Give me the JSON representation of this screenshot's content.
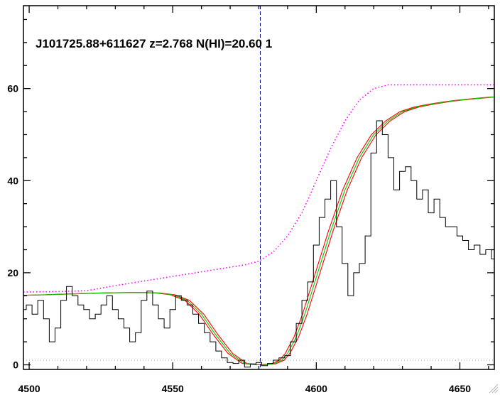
{
  "chart_data": {
    "type": "line",
    "title": "J101725.88+611627 z=2.768 N(HI)=20.60 1",
    "xlabel": "",
    "ylabel": "",
    "xlim": [
      4498,
      4662
    ],
    "ylim": [
      -1,
      78
    ],
    "x_ticks": [
      4500,
      4550,
      4600,
      4650
    ],
    "x_minor_step": 10,
    "y_ticks": [
      0,
      20,
      40,
      60
    ],
    "y_minor_step": 5,
    "grid": false,
    "legend": "none",
    "absorber_center_x": 4580.5,
    "flux_x": [
      4498,
      4500,
      4502,
      4504,
      4506,
      4508,
      4510,
      4512,
      4514,
      4516,
      4518,
      4520,
      4522,
      4524,
      4526,
      4528,
      4530,
      4532,
      4534,
      4536,
      4538,
      4540,
      4542,
      4544,
      4546,
      4548,
      4550,
      4552,
      4554,
      4556,
      4558,
      4560,
      4562,
      4564,
      4566,
      4568,
      4570,
      4572,
      4574,
      4576,
      4578,
      4580,
      4582,
      4584,
      4586,
      4588,
      4590,
      4592,
      4594,
      4596,
      4598,
      4600,
      4602,
      4604,
      4606,
      4608,
      4610,
      4612,
      4614,
      4616,
      4618,
      4620,
      4622,
      4624,
      4626,
      4628,
      4630,
      4632,
      4634,
      4636,
      4638,
      4640,
      4642,
      4644,
      4646,
      4648,
      4650,
      4652,
      4654,
      4656,
      4658,
      4660,
      4662
    ],
    "flux_y": [
      12,
      13,
      11,
      14,
      10,
      5,
      8,
      14,
      17,
      15,
      13,
      12,
      10,
      11,
      13,
      15,
      12,
      10,
      8,
      5,
      7,
      14,
      16,
      13,
      10,
      8,
      12,
      15,
      14,
      13,
      11,
      9,
      7,
      5,
      3,
      1.5,
      0.5,
      0.3,
      1,
      -0.5,
      0.2,
      0.5,
      -0.2,
      0.3,
      1,
      1.5,
      2,
      5,
      9,
      14,
      18,
      26,
      32,
      36,
      40,
      30,
      22,
      15,
      20,
      22,
      28,
      46,
      53,
      50,
      45,
      38,
      42,
      43,
      40,
      36,
      38,
      33,
      36,
      32,
      30,
      30,
      28,
      27,
      25,
      26,
      24,
      25,
      23
    ],
    "model_x": [
      4498,
      4505,
      4510,
      4515,
      4520,
      4525,
      4530,
      4535,
      4540,
      4545,
      4550,
      4555,
      4560,
      4565,
      4570,
      4575,
      4580,
      4585,
      4588,
      4590,
      4593,
      4596,
      4600,
      4605,
      4610,
      4615,
      4620,
      4625,
      4630,
      4635,
      4640,
      4645,
      4650,
      4655,
      4662
    ],
    "model_y": [
      15.1,
      15.2,
      15.3,
      15.4,
      15.5,
      15.6,
      15.65,
      15.7,
      15.7,
      15.6,
      15.2,
      14,
      11,
      6.5,
      2.5,
      0.3,
      0,
      0.2,
      1,
      2.5,
      6,
      11,
      19,
      29,
      38,
      45,
      50,
      53,
      55,
      56,
      56.6,
      57.1,
      57.5,
      57.8,
      58.2
    ],
    "model_offset": 0.8,
    "continuum_x": [
      4498,
      4510,
      4520,
      4530,
      4540,
      4550,
      4560,
      4570,
      4575,
      4580,
      4585,
      4590,
      4595,
      4600,
      4605,
      4610,
      4615,
      4620,
      4625,
      4662
    ],
    "continuum_y": [
      15.8,
      15.9,
      16.1,
      17.2,
      18.2,
      19.2,
      20.2,
      21.2,
      21.7,
      22.5,
      24.5,
      28,
      33,
      40,
      47,
      53,
      57.5,
      60,
      60.8,
      60.8
    ],
    "error_level": 1.0,
    "colors": {
      "flux": "#000000",
      "model": "#00cc00",
      "model_bounds": "#ff0000",
      "continuum": "#ff00ff",
      "continuum_dots": "#0000ff",
      "error": "#ff8c00",
      "absorber_line": "#000080"
    }
  }
}
